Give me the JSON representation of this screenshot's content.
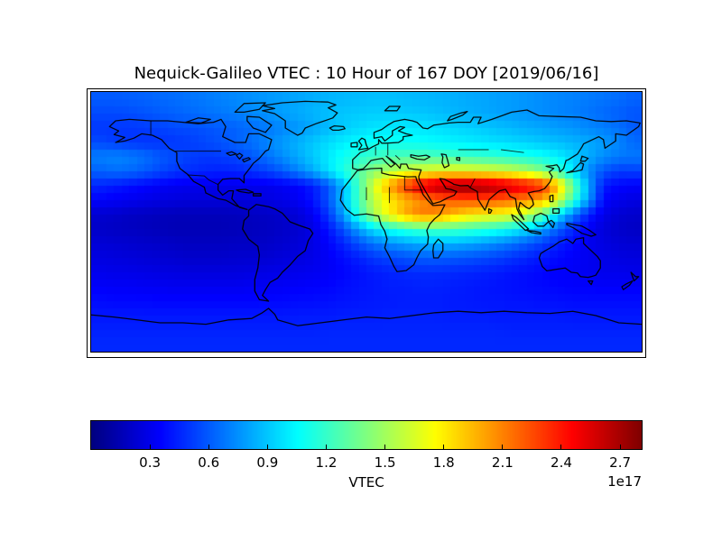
{
  "title": "Nequick-Galileo VTEC : 10 Hour of 167 DOY [2019/06/16]",
  "colorbar": {
    "label": "VTEC",
    "offset_text": "1e17",
    "ticks": [
      0.3,
      0.6,
      0.9,
      1.2,
      1.5,
      1.8,
      2.1,
      2.4,
      2.7
    ]
  },
  "chart_data": {
    "type": "heatmap",
    "title": "Nequick-Galileo VTEC : 10 Hour of 167 DOY [2019/06/16]",
    "colormap": "jet",
    "colorbar_label": "VTEC",
    "value_scale": "1e17",
    "vmin": 0.0,
    "vmax": 2.81,
    "colorbar_ticks": [
      0.3,
      0.6,
      0.9,
      1.2,
      1.5,
      1.8,
      2.1,
      2.4,
      2.7
    ],
    "x_axis": {
      "name": "longitude_deg",
      "range": [
        -180,
        180
      ],
      "cols": 36
    },
    "y_axis": {
      "name": "latitude_deg",
      "range": [
        90,
        -90
      ],
      "rows": 18
    },
    "overlay": "world coastlines and country borders",
    "values_1e17": [
      [
        0.6,
        0.6,
        0.61,
        0.62,
        0.64,
        0.65,
        0.67,
        0.69,
        0.71,
        0.73,
        0.75,
        0.77,
        0.79,
        0.81,
        0.83,
        0.85,
        0.86,
        0.87,
        0.88,
        0.88,
        0.87,
        0.86,
        0.85,
        0.84,
        0.82,
        0.81,
        0.79,
        0.78,
        0.76,
        0.74,
        0.72,
        0.71,
        0.69,
        0.67,
        0.65,
        0.62
      ],
      [
        0.55,
        0.55,
        0.56,
        0.58,
        0.6,
        0.62,
        0.64,
        0.66,
        0.68,
        0.7,
        0.73,
        0.76,
        0.79,
        0.82,
        0.85,
        0.88,
        0.9,
        0.91,
        0.92,
        0.92,
        0.91,
        0.9,
        0.88,
        0.86,
        0.84,
        0.82,
        0.8,
        0.78,
        0.76,
        0.74,
        0.72,
        0.7,
        0.67,
        0.64,
        0.61,
        0.58
      ],
      [
        0.5,
        0.5,
        0.5,
        0.51,
        0.53,
        0.55,
        0.56,
        0.58,
        0.6,
        0.62,
        0.65,
        0.68,
        0.72,
        0.76,
        0.81,
        0.86,
        0.91,
        0.95,
        0.98,
        1.0,
        1.0,
        0.99,
        0.97,
        0.95,
        0.93,
        0.91,
        0.88,
        0.86,
        0.83,
        0.81,
        0.78,
        0.76,
        0.73,
        0.7,
        0.66,
        0.6
      ],
      [
        0.55,
        0.52,
        0.5,
        0.49,
        0.49,
        0.5,
        0.52,
        0.55,
        0.58,
        0.62,
        0.66,
        0.72,
        0.78,
        0.84,
        0.9,
        0.96,
        1.01,
        1.05,
        1.08,
        1.09,
        1.08,
        1.07,
        1.05,
        1.03,
        1.01,
        0.99,
        0.97,
        0.95,
        0.93,
        0.9,
        0.88,
        0.85,
        0.82,
        0.78,
        0.72,
        0.64
      ],
      [
        0.7,
        0.72,
        0.7,
        0.66,
        0.6,
        0.56,
        0.52,
        0.5,
        0.51,
        0.54,
        0.59,
        0.66,
        0.74,
        0.82,
        0.91,
        1.0,
        1.09,
        1.16,
        1.21,
        1.24,
        1.26,
        1.26,
        1.25,
        1.24,
        1.22,
        1.2,
        1.18,
        1.15,
        1.12,
        1.08,
        1.02,
        0.93,
        0.83,
        0.74,
        0.69,
        0.68
      ],
      [
        0.62,
        0.65,
        0.64,
        0.6,
        0.55,
        0.5,
        0.47,
        0.45,
        0.44,
        0.45,
        0.48,
        0.53,
        0.6,
        0.7,
        0.82,
        0.97,
        1.14,
        1.3,
        1.44,
        1.55,
        1.63,
        1.68,
        1.72,
        1.73,
        1.72,
        1.7,
        1.67,
        1.62,
        1.54,
        1.42,
        1.22,
        0.98,
        0.74,
        0.58,
        0.51,
        0.52
      ],
      [
        0.45,
        0.42,
        0.39,
        0.36,
        0.33,
        0.31,
        0.3,
        0.29,
        0.29,
        0.29,
        0.3,
        0.3,
        0.32,
        0.35,
        0.42,
        0.58,
        0.85,
        1.25,
        1.65,
        2.0,
        2.3,
        2.55,
        2.7,
        2.78,
        2.8,
        2.77,
        2.7,
        2.61,
        2.51,
        2.39,
        1.95,
        1.35,
        0.82,
        0.42,
        0.36,
        0.34
      ],
      [
        0.35,
        0.33,
        0.31,
        0.29,
        0.27,
        0.26,
        0.25,
        0.25,
        0.25,
        0.25,
        0.26,
        0.27,
        0.29,
        0.32,
        0.4,
        0.58,
        0.88,
        1.25,
        1.58,
        1.8,
        1.95,
        2.06,
        2.14,
        2.2,
        2.23,
        2.23,
        2.2,
        2.15,
        2.08,
        1.98,
        1.68,
        1.22,
        0.78,
        0.36,
        0.3,
        0.27
      ],
      [
        0.22,
        0.21,
        0.19,
        0.18,
        0.17,
        0.16,
        0.16,
        0.16,
        0.16,
        0.17,
        0.18,
        0.19,
        0.21,
        0.24,
        0.32,
        0.5,
        0.8,
        1.18,
        1.52,
        1.78,
        1.98,
        2.12,
        2.1,
        1.97,
        1.86,
        1.8,
        1.76,
        1.7,
        1.56,
        1.32,
        1.0,
        0.68,
        0.44,
        0.29,
        0.23,
        0.21
      ],
      [
        0.2,
        0.19,
        0.18,
        0.17,
        0.16,
        0.15,
        0.15,
        0.15,
        0.15,
        0.16,
        0.17,
        0.18,
        0.2,
        0.22,
        0.28,
        0.4,
        0.58,
        0.8,
        0.98,
        1.1,
        1.18,
        1.24,
        1.26,
        1.25,
        1.22,
        1.18,
        1.13,
        1.06,
        0.95,
        0.8,
        0.62,
        0.46,
        0.33,
        0.25,
        0.21,
        0.19
      ],
      [
        0.24,
        0.23,
        0.22,
        0.21,
        0.2,
        0.19,
        0.18,
        0.18,
        0.18,
        0.19,
        0.19,
        0.2,
        0.22,
        0.24,
        0.28,
        0.35,
        0.45,
        0.57,
        0.67,
        0.74,
        0.79,
        0.83,
        0.85,
        0.84,
        0.82,
        0.78,
        0.73,
        0.67,
        0.6,
        0.52,
        0.44,
        0.37,
        0.31,
        0.27,
        0.24,
        0.23
      ],
      [
        0.27,
        0.26,
        0.25,
        0.24,
        0.23,
        0.22,
        0.21,
        0.21,
        0.21,
        0.22,
        0.22,
        0.23,
        0.25,
        0.26,
        0.29,
        0.33,
        0.38,
        0.44,
        0.5,
        0.54,
        0.57,
        0.6,
        0.61,
        0.6,
        0.58,
        0.56,
        0.53,
        0.49,
        0.45,
        0.41,
        0.37,
        0.34,
        0.31,
        0.29,
        0.27,
        0.26
      ],
      [
        0.3,
        0.29,
        0.29,
        0.28,
        0.27,
        0.27,
        0.26,
        0.26,
        0.26,
        0.26,
        0.27,
        0.28,
        0.29,
        0.3,
        0.31,
        0.33,
        0.36,
        0.39,
        0.42,
        0.44,
        0.46,
        0.47,
        0.47,
        0.46,
        0.45,
        0.44,
        0.42,
        0.4,
        0.38,
        0.36,
        0.34,
        0.33,
        0.31,
        0.3,
        0.3,
        0.29
      ],
      [
        0.34,
        0.33,
        0.33,
        0.32,
        0.32,
        0.31,
        0.31,
        0.31,
        0.31,
        0.31,
        0.32,
        0.32,
        0.33,
        0.34,
        0.35,
        0.36,
        0.38,
        0.4,
        0.41,
        0.43,
        0.43,
        0.44,
        0.44,
        0.43,
        0.42,
        0.41,
        0.4,
        0.39,
        0.38,
        0.37,
        0.36,
        0.35,
        0.35,
        0.34,
        0.34,
        0.34
      ],
      [
        0.38,
        0.37,
        0.37,
        0.37,
        0.36,
        0.36,
        0.36,
        0.36,
        0.36,
        0.36,
        0.36,
        0.37,
        0.37,
        0.38,
        0.38,
        0.39,
        0.4,
        0.41,
        0.42,
        0.42,
        0.43,
        0.43,
        0.43,
        0.42,
        0.42,
        0.41,
        0.41,
        0.4,
        0.4,
        0.39,
        0.39,
        0.38,
        0.38,
        0.38,
        0.38,
        0.38
      ],
      [
        0.41,
        0.41,
        0.41,
        0.41,
        0.41,
        0.41,
        0.41,
        0.41,
        0.41,
        0.41,
        0.41,
        0.41,
        0.41,
        0.42,
        0.42,
        0.42,
        0.43,
        0.43,
        0.43,
        0.44,
        0.44,
        0.44,
        0.44,
        0.43,
        0.43,
        0.43,
        0.42,
        0.42,
        0.42,
        0.42,
        0.42,
        0.41,
        0.41,
        0.41,
        0.41,
        0.41
      ],
      [
        0.44,
        0.44,
        0.44,
        0.44,
        0.44,
        0.44,
        0.44,
        0.44,
        0.44,
        0.44,
        0.44,
        0.44,
        0.44,
        0.44,
        0.44,
        0.45,
        0.45,
        0.45,
        0.45,
        0.45,
        0.45,
        0.45,
        0.45,
        0.45,
        0.45,
        0.45,
        0.45,
        0.44,
        0.44,
        0.44,
        0.44,
        0.44,
        0.44,
        0.44,
        0.44,
        0.44
      ],
      [
        0.46,
        0.46,
        0.46,
        0.46,
        0.46,
        0.46,
        0.46,
        0.46,
        0.46,
        0.46,
        0.46,
        0.46,
        0.46,
        0.46,
        0.46,
        0.46,
        0.46,
        0.46,
        0.46,
        0.46,
        0.46,
        0.46,
        0.46,
        0.46,
        0.46,
        0.46,
        0.46,
        0.46,
        0.46,
        0.46,
        0.46,
        0.46,
        0.46,
        0.46,
        0.46,
        0.46
      ]
    ]
  }
}
